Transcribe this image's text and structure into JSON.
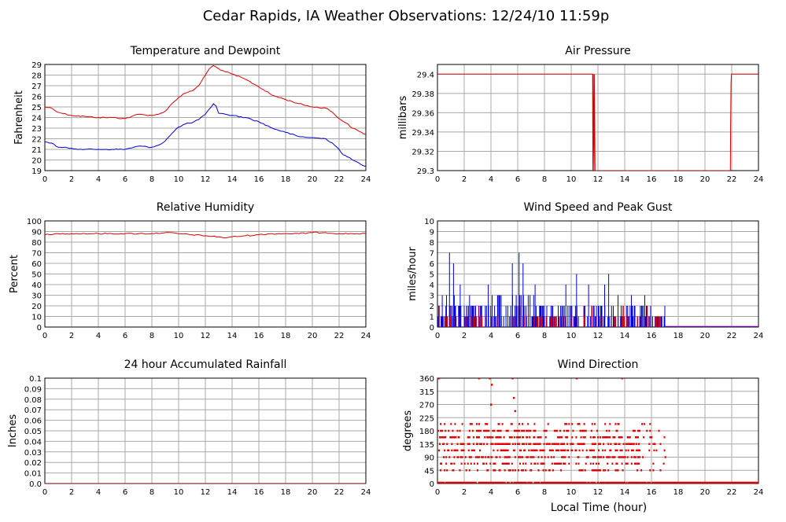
{
  "page_title": "Cedar Rapids, IA Weather Observations: 12/24/10 11:59p",
  "xlabel_global": "Local Time (hour)",
  "colors": {
    "red": "#e00000",
    "blue": "#0000dd",
    "grid": "#a8a8a8"
  },
  "chart_data": [
    {
      "id": "temp",
      "type": "line",
      "title": "Temperature and Dewpoint",
      "ylabel": "Fahrenheit",
      "xlim": [
        0,
        24
      ],
      "ylim": [
        19,
        29
      ],
      "xticks": [
        0,
        2,
        4,
        6,
        8,
        10,
        12,
        14,
        16,
        18,
        20,
        22,
        24
      ],
      "yticks": [
        19,
        20,
        21,
        22,
        23,
        24,
        25,
        26,
        27,
        28,
        29
      ],
      "grid": true,
      "series": [
        {
          "color": "#e00000",
          "x": [
            0,
            0.5,
            1,
            2,
            3,
            4,
            5,
            6,
            6.5,
            7,
            8,
            8.5,
            9,
            9.5,
            10,
            10.5,
            11,
            11.5,
            12,
            12.3,
            12.6,
            13,
            13.5,
            14,
            15,
            16,
            17,
            18,
            19,
            20,
            21,
            21.5,
            22,
            22.5,
            23,
            23.5,
            24
          ],
          "y": [
            25,
            24.9,
            24.5,
            24.2,
            24.1,
            24.0,
            24.0,
            23.9,
            24.1,
            24.3,
            24.2,
            24.3,
            24.6,
            25.3,
            25.9,
            26.3,
            26.5,
            27.0,
            28.0,
            28.6,
            28.9,
            28.6,
            28.3,
            28.1,
            27.6,
            26.9,
            26.1,
            25.7,
            25.3,
            25.0,
            24.9,
            24.5,
            23.9,
            23.5,
            23.0,
            22.7,
            22.4
          ]
        },
        {
          "color": "#0000dd",
          "x": [
            0,
            0.5,
            1,
            2,
            3,
            4,
            5,
            6,
            7,
            8,
            8.5,
            9,
            9.5,
            10,
            10.5,
            11,
            11.5,
            12,
            12.3,
            12.6,
            12.8,
            13,
            13.5,
            14,
            15,
            16,
            17,
            18,
            19,
            20,
            21,
            21.5,
            22,
            22.3,
            22.6,
            23,
            23.5,
            24
          ],
          "y": [
            21.7,
            21.6,
            21.2,
            21.1,
            21.0,
            21.0,
            21.0,
            21.0,
            21.3,
            21.2,
            21.4,
            21.8,
            22.5,
            23.1,
            23.4,
            23.5,
            23.8,
            24.3,
            24.8,
            25.3,
            25.1,
            24.4,
            24.3,
            24.2,
            24.0,
            23.6,
            23.0,
            22.6,
            22.2,
            22.1,
            22.0,
            21.6,
            21.0,
            20.5,
            20.3,
            20.0,
            19.7,
            19.4
          ]
        }
      ]
    },
    {
      "id": "pressure",
      "type": "line",
      "title": "Air Pressure",
      "ylabel": "millibars",
      "xlim": [
        0,
        24
      ],
      "ylim": [
        29.3,
        29.41
      ],
      "xticks": [
        0,
        2,
        4,
        6,
        8,
        10,
        12,
        14,
        16,
        18,
        20,
        22,
        24
      ],
      "yticks": [
        29.3,
        29.32,
        29.34,
        29.36,
        29.38,
        29.4
      ],
      "yticklabels": [
        "29.3",
        "29.32",
        "29.34",
        "29.36",
        "29.38",
        "29.4"
      ],
      "grid": true,
      "series": [
        {
          "color": "#e00000",
          "x": [
            0,
            11.6,
            11.62,
            11.66,
            11.7,
            11.74,
            11.78,
            11.82,
            21.9,
            21.92,
            21.95,
            21.98,
            22.02,
            24
          ],
          "y": [
            29.4,
            29.4,
            29.3,
            29.4,
            29.3,
            29.4,
            29.3,
            29.3,
            29.3,
            29.345,
            29.39,
            29.4,
            29.4,
            29.4
          ]
        }
      ]
    },
    {
      "id": "rh",
      "type": "line",
      "title": "Relative Humidity",
      "ylabel": "Percent",
      "xlim": [
        0,
        24
      ],
      "ylim": [
        0,
        100
      ],
      "xticks": [
        0,
        2,
        4,
        6,
        8,
        10,
        12,
        14,
        16,
        18,
        20,
        22,
        24
      ],
      "yticks": [
        0,
        10,
        20,
        30,
        40,
        50,
        60,
        70,
        80,
        90,
        100
      ],
      "grid": true,
      "series": [
        {
          "color": "#e00000",
          "x": [
            0,
            0.5,
            1,
            2,
            3,
            4,
            5,
            6,
            7,
            8,
            9,
            10,
            11,
            12,
            13,
            13.5,
            14,
            15,
            16,
            17,
            18,
            19,
            20,
            21,
            22,
            23,
            24
          ],
          "y": [
            87,
            87,
            88,
            88,
            88,
            88,
            88,
            88,
            88,
            88,
            89,
            88,
            87,
            86,
            85,
            84,
            85,
            86,
            87,
            88,
            88,
            88,
            89,
            89,
            88,
            88,
            88
          ]
        }
      ]
    },
    {
      "id": "wind",
      "type": "bar",
      "title": "Wind Speed and Peak Gust",
      "ylabel": "miles/hour",
      "xlim": [
        0,
        24
      ],
      "ylim": [
        0,
        10
      ],
      "xticks": [
        0,
        2,
        4,
        6,
        8,
        10,
        12,
        14,
        16,
        18,
        20,
        22,
        24
      ],
      "yticks": [
        0,
        1,
        2,
        3,
        4,
        5,
        6,
        7,
        8,
        9,
        10
      ],
      "grid": true,
      "peaks": [
        {
          "x": 0.9,
          "y": 7
        },
        {
          "x": 1.2,
          "y": 6
        },
        {
          "x": 1.7,
          "y": 4
        },
        {
          "x": 2.4,
          "y": 3
        },
        {
          "x": 3.8,
          "y": 4
        },
        {
          "x": 5.6,
          "y": 6
        },
        {
          "x": 6.1,
          "y": 7
        },
        {
          "x": 6.4,
          "y": 6
        },
        {
          "x": 7.3,
          "y": 4
        },
        {
          "x": 9.6,
          "y": 4
        },
        {
          "x": 10.4,
          "y": 5
        },
        {
          "x": 11.3,
          "y": 4
        },
        {
          "x": 12.5,
          "y": 4
        },
        {
          "x": 12.8,
          "y": 5
        },
        {
          "x": 13.5,
          "y": 3
        },
        {
          "x": 14.5,
          "y": 3
        },
        {
          "x": 15.5,
          "y": 3
        },
        {
          "x": 17.0,
          "y": 2
        }
      ],
      "activity": [
        [
          0,
          2,
          3
        ],
        [
          2,
          4,
          2
        ],
        [
          4,
          7.5,
          3
        ],
        [
          7.5,
          10,
          2
        ],
        [
          10,
          14,
          2
        ],
        [
          14,
          16,
          2
        ],
        [
          16,
          17,
          1
        ]
      ],
      "series": [
        {
          "name": "Peak Gust",
          "color": "#0000dd"
        },
        {
          "name": "Wind Speed",
          "color": "#e00000"
        }
      ]
    },
    {
      "id": "rain",
      "type": "line",
      "title": "24 hour Accumulated Rainfall",
      "ylabel": "Inches",
      "xlim": [
        0,
        24
      ],
      "ylim": [
        0,
        0.1
      ],
      "xticks": [
        0,
        2,
        4,
        6,
        8,
        10,
        12,
        14,
        16,
        18,
        20,
        22,
        24
      ],
      "yticks": [
        0,
        0.01,
        0.02,
        0.03,
        0.04,
        0.05,
        0.06,
        0.07,
        0.08,
        0.09,
        0.1
      ],
      "yticklabels": [
        "0.0",
        "0.01",
        "0.02",
        "0.03",
        "0.04",
        "0.05",
        "0.06",
        "0.07",
        "0.08",
        "0.09",
        "0.1"
      ],
      "grid": true,
      "series": [
        {
          "color": "#e00000",
          "x": [
            0,
            24
          ],
          "y": [
            0,
            0
          ]
        }
      ]
    },
    {
      "id": "dir",
      "type": "scatter",
      "title": "Wind Direction",
      "ylabel": "degrees",
      "xlabel": "Local Time (hour)",
      "xlim": [
        0,
        24
      ],
      "ylim": [
        0,
        360
      ],
      "xticks": [
        0,
        2,
        4,
        6,
        8,
        10,
        12,
        14,
        16,
        18,
        20,
        22,
        24
      ],
      "yticks": [
        0,
        45,
        90,
        135,
        180,
        225,
        270,
        315,
        360
      ],
      "grid": true,
      "calm_until": 24,
      "dir_levels": [
        [
          360,
          0.2
        ],
        [
          45,
          0.3
        ],
        [
          68,
          0.5
        ],
        [
          90,
          0.6
        ],
        [
          113,
          0.5
        ],
        [
          135,
          0.7
        ],
        [
          158,
          0.6
        ],
        [
          180,
          0.4
        ],
        [
          203,
          0.2
        ]
      ],
      "active_range": [
        0,
        17
      ],
      "outliers": [
        {
          "x": 0.1,
          "y": 360
        },
        {
          "x": 3.1,
          "y": 360
        },
        {
          "x": 3.9,
          "y": 360
        },
        {
          "x": 4.05,
          "y": 338
        },
        {
          "x": 4.0,
          "y": 270
        },
        {
          "x": 5.6,
          "y": 360
        },
        {
          "x": 5.7,
          "y": 293
        },
        {
          "x": 5.8,
          "y": 248
        },
        {
          "x": 10.4,
          "y": 360
        },
        {
          "x": 13.8,
          "y": 360
        }
      ],
      "series": [
        {
          "color": "#e00000"
        }
      ]
    }
  ]
}
